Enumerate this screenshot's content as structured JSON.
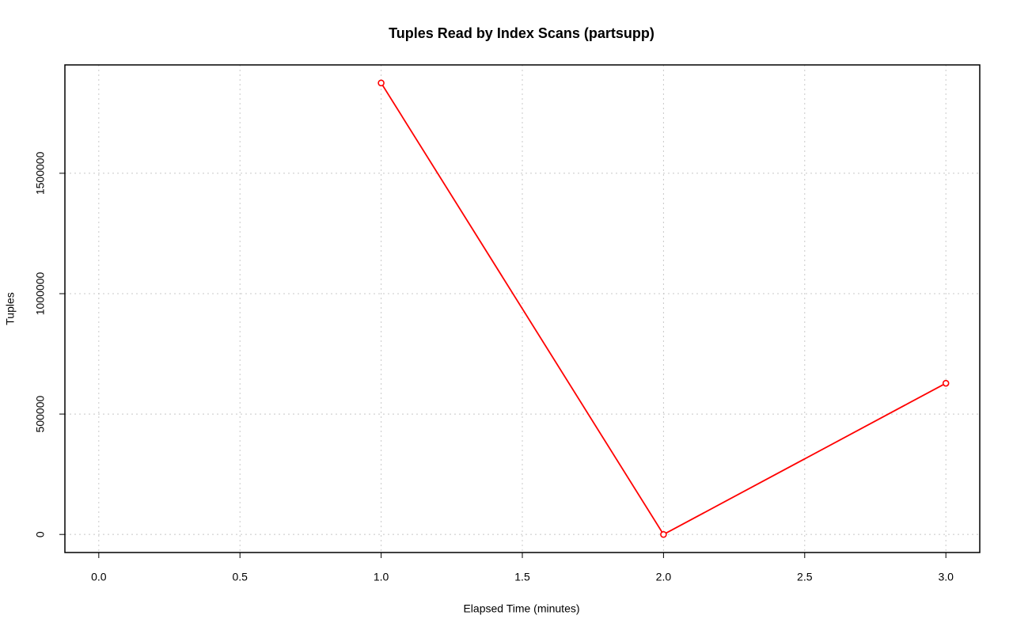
{
  "chart_data": {
    "type": "line",
    "title": "Tuples Read by Index Scans (partsupp)",
    "x_label": "Elapsed Time (minutes)",
    "y_label": "Tuples",
    "x": [
      1,
      2,
      3
    ],
    "series": [
      {
        "name": "partsupp",
        "color": "#ff0000",
        "values": [
          1875000,
          0,
          628000
        ]
      }
    ],
    "xlim": [
      -0.12,
      3.12
    ],
    "xticks": [
      {
        "value": 0,
        "label": "0.0"
      },
      0.5,
      {
        "value": 1,
        "label": "1.0"
      },
      1.5,
      {
        "value": 2,
        "label": "2.0"
      },
      2.5,
      {
        "value": 3,
        "label": "3.0"
      }
    ],
    "ylim": [
      -75000,
      1950000
    ],
    "yticks": [
      0,
      500000,
      1000000,
      1500000
    ],
    "grid": true
  }
}
